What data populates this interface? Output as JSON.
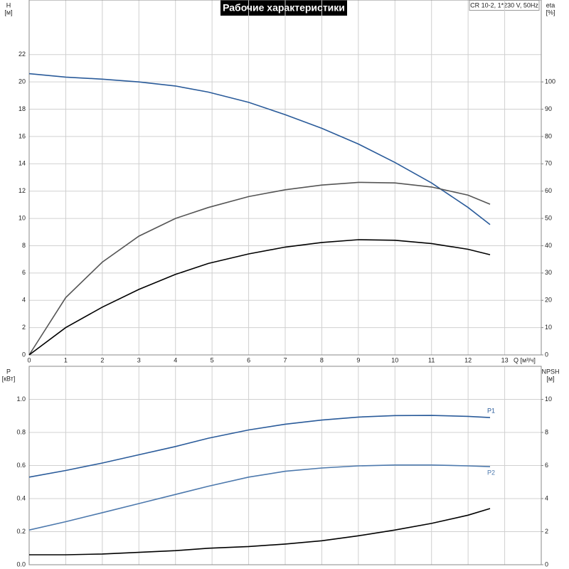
{
  "chart_data": [
    {
      "type": "line",
      "title": "Рабочие характеристики",
      "subtitle": "CR 10-2, 1*230 V, 50Hz",
      "y_label": "H",
      "y_unit": "[м]",
      "y2_label": "eta",
      "y2_unit": "[%]",
      "x_label": "Q [м³/ч]",
      "x": [
        0,
        1,
        2,
        3,
        4,
        4.9,
        6,
        7,
        8,
        9,
        10,
        11,
        12,
        12.6
      ],
      "xlim": [
        0,
        14
      ],
      "xticks": [
        0,
        1,
        2,
        3,
        4,
        5,
        6,
        7,
        8,
        9,
        10,
        11,
        12,
        13
      ],
      "ylim": [
        0,
        26
      ],
      "yticks": [
        0,
        2,
        4,
        6,
        8,
        10,
        12,
        14,
        16,
        18,
        20,
        22
      ],
      "y2lim": [
        0,
        130
      ],
      "y2ticks": [
        0,
        10,
        20,
        30,
        40,
        50,
        60,
        70,
        80,
        90,
        100
      ],
      "grid": true,
      "series": [
        {
          "color": "#2a5b9a",
          "values": [
            20.6,
            20.35,
            20.2,
            20.0,
            19.7,
            19.25,
            18.5,
            17.6,
            16.6,
            15.45,
            14.1,
            12.6,
            10.8,
            9.55
          ]
        },
        {
          "color": "#555555",
          "axis": "y2",
          "values": [
            0,
            21,
            34,
            43.5,
            50,
            54,
            58,
            60.5,
            62.2,
            63.2,
            63,
            61.5,
            58.5,
            55.2
          ]
        },
        {
          "color": "#000000",
          "axis": "y2",
          "values": [
            0,
            10,
            17.5,
            24,
            29.5,
            33.5,
            37,
            39.5,
            41.2,
            42.2,
            42,
            40.8,
            38.7,
            36.7
          ]
        }
      ]
    },
    {
      "type": "line",
      "y_label": "P",
      "y_unit": "[кВт]",
      "y2_label": "NPSH",
      "y2_unit": "[м]",
      "x": [
        0,
        1,
        2,
        3,
        4,
        4.9,
        6,
        7,
        8,
        9,
        10,
        11,
        12,
        12.6
      ],
      "xlim": [
        0,
        14
      ],
      "ylim": [
        0,
        1.2
      ],
      "yticks": [
        {
          "value": 0,
          "label": "0.0"
        },
        0.2,
        0.4,
        0.6,
        0.8,
        {
          "value": 1,
          "label": "1.0"
        }
      ],
      "y2lim": [
        0,
        12
      ],
      "y2ticks": [
        0,
        2,
        4,
        6,
        8,
        10
      ],
      "grid": true,
      "series": [
        {
          "name": "P1",
          "color": "#2a5b9a",
          "values": [
            0.53,
            0.57,
            0.615,
            0.665,
            0.715,
            0.765,
            0.815,
            0.85,
            0.875,
            0.893,
            0.902,
            0.903,
            0.897,
            0.89
          ]
        },
        {
          "name": "P2",
          "color": "#4d79ad",
          "values": [
            0.21,
            0.26,
            0.315,
            0.37,
            0.425,
            0.475,
            0.53,
            0.565,
            0.585,
            0.598,
            0.603,
            0.603,
            0.598,
            0.593
          ]
        },
        {
          "color": "#000000",
          "axis": "y2",
          "values": [
            0.6,
            0.6,
            0.65,
            0.75,
            0.85,
            1.0,
            1.1,
            1.25,
            1.45,
            1.75,
            2.1,
            2.5,
            3.0,
            3.4
          ]
        }
      ]
    }
  ]
}
